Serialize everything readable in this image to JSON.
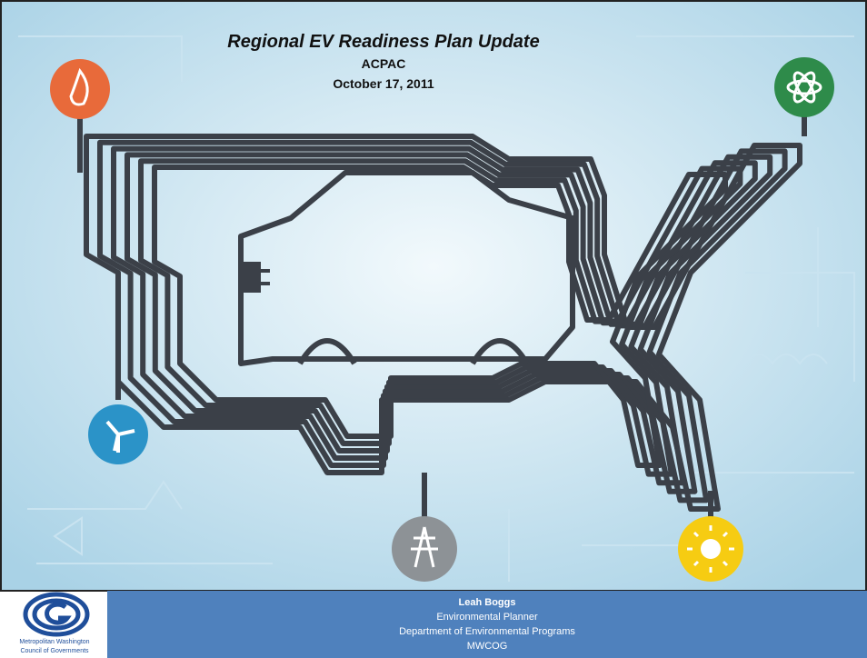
{
  "slide": {
    "title": "Regional EV Readiness Plan Update",
    "subtitle": "ACPAC",
    "date": "October 17, 2011"
  },
  "footer": {
    "presenter": "Leah Boggs",
    "role": "Environmental Planner",
    "department": "Department of Environmental Programs",
    "organization": "MWCOG"
  },
  "logo": {
    "lines": [
      "Metropolitan Washington",
      "Council of Governments"
    ]
  }
}
